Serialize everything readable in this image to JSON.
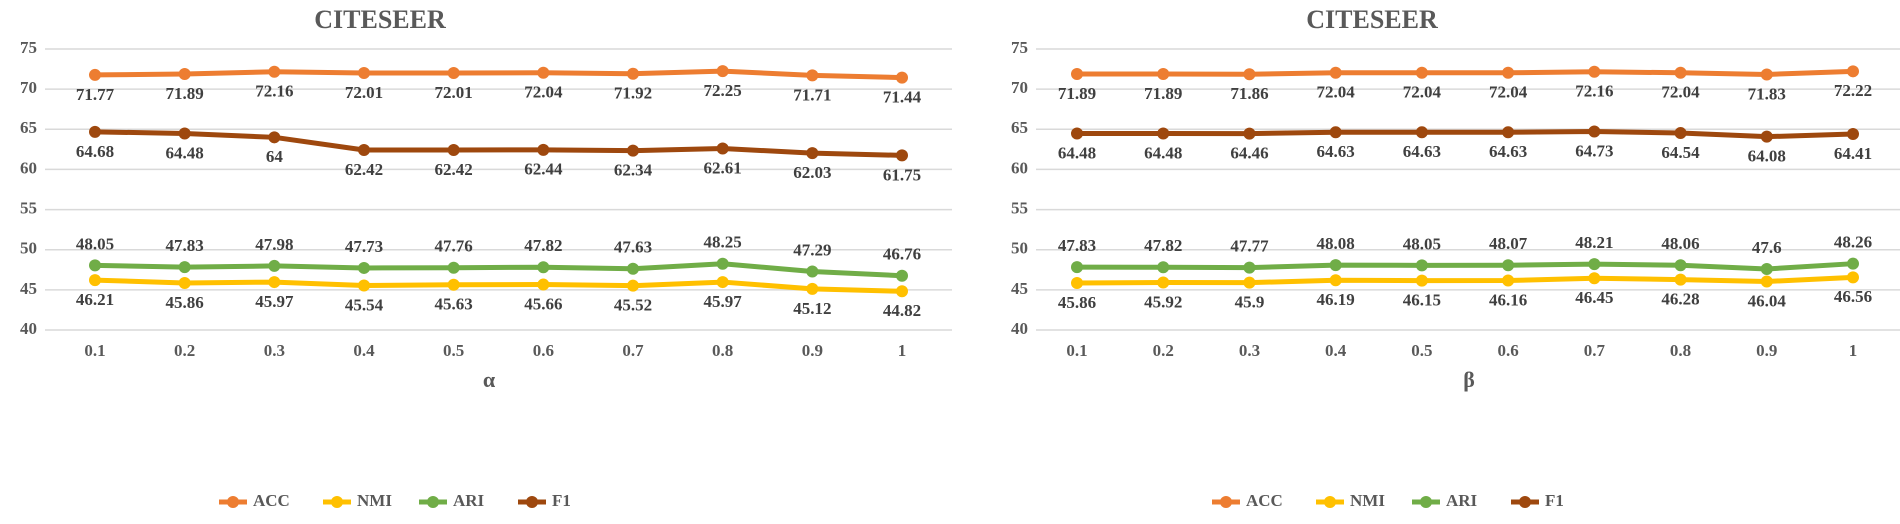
{
  "chart_data": [
    {
      "type": "line",
      "title": "CITESEER",
      "xlabel": "α",
      "ylabel": "",
      "categories": [
        "0.1",
        "0.2",
        "0.3",
        "0.4",
        "0.5",
        "0.6",
        "0.7",
        "0.8",
        "0.9",
        "1"
      ],
      "ylim": [
        40,
        75
      ],
      "yticks": [
        "40",
        "45",
        "50",
        "55",
        "60",
        "65",
        "70",
        "75"
      ],
      "grid": true,
      "legend": "bottom",
      "series": [
        {
          "name": "ACC",
          "color": "#ED7D31",
          "label_pos": "below",
          "values": [
            71.77,
            71.89,
            72.16,
            72.01,
            72.01,
            72.04,
            71.92,
            72.25,
            71.71,
            71.44
          ],
          "labels": [
            "71.77",
            "71.89",
            "72.16",
            "72.01",
            "72.01",
            "72.04",
            "71.92",
            "72.25",
            "71.71",
            "71.44"
          ]
        },
        {
          "name": "NMI",
          "color": "#FFC000",
          "label_pos": "below",
          "values": [
            46.21,
            45.86,
            45.97,
            45.54,
            45.63,
            45.66,
            45.52,
            45.97,
            45.12,
            44.82
          ],
          "labels": [
            "46.21",
            "45.86",
            "45.97",
            "45.54",
            "45.63",
            "45.66",
            "45.52",
            "45.97",
            "45.12",
            "44.82"
          ]
        },
        {
          "name": "ARI",
          "color": "#70AD47",
          "label_pos": "above",
          "values": [
            48.05,
            47.83,
            47.98,
            47.73,
            47.76,
            47.82,
            47.63,
            48.25,
            47.29,
            46.76
          ],
          "labels": [
            "48.05",
            "47.83",
            "47.98",
            "47.73",
            "47.76",
            "47.82",
            "47.63",
            "48.25",
            "47.29",
            "46.76"
          ]
        },
        {
          "name": "F1",
          "color": "#9E480E",
          "label_pos": "below",
          "values": [
            64.68,
            64.48,
            64,
            62.42,
            62.42,
            62.44,
            62.34,
            62.61,
            62.03,
            61.75
          ],
          "labels": [
            "64.68",
            "64.48",
            "64",
            "62.42",
            "62.42",
            "62.44",
            "62.34",
            "62.61",
            "62.03",
            "61.75"
          ]
        }
      ]
    },
    {
      "type": "line",
      "title": "CITESEER",
      "xlabel": "β",
      "ylabel": "",
      "categories": [
        "0.1",
        "0.2",
        "0.3",
        "0.4",
        "0.5",
        "0.6",
        "0.7",
        "0.8",
        "0.9",
        "1"
      ],
      "ylim": [
        40,
        75
      ],
      "yticks": [
        "40",
        "45",
        "50",
        "55",
        "60",
        "65",
        "70",
        "75"
      ],
      "grid": true,
      "legend": "bottom",
      "series": [
        {
          "name": "ACC",
          "color": "#ED7D31",
          "label_pos": "below",
          "values": [
            71.89,
            71.89,
            71.86,
            72.04,
            72.04,
            72.04,
            72.16,
            72.04,
            71.83,
            72.22
          ],
          "labels": [
            "71.89",
            "71.89",
            "71.86",
            "72.04",
            "72.04",
            "72.04",
            "72.16",
            "72.04",
            "71.83",
            "72.22"
          ]
        },
        {
          "name": "NMI",
          "color": "#FFC000",
          "label_pos": "below",
          "values": [
            45.86,
            45.92,
            45.9,
            46.19,
            46.15,
            46.16,
            46.45,
            46.28,
            46.04,
            46.56
          ],
          "labels": [
            "45.86",
            "45.92",
            "45.9",
            "46.19",
            "46.15",
            "46.16",
            "46.45",
            "46.28",
            "46.04",
            "46.56"
          ]
        },
        {
          "name": "ARI",
          "color": "#70AD47",
          "label_pos": "above",
          "values": [
            47.83,
            47.82,
            47.77,
            48.08,
            48.05,
            48.07,
            48.21,
            48.06,
            47.6,
            48.26
          ],
          "labels": [
            "47.83",
            "47.82",
            "47.77",
            "48.08",
            "48.05",
            "48.07",
            "48.21",
            "48.06",
            "47.6",
            "48.26"
          ]
        },
        {
          "name": "F1",
          "color": "#9E480E",
          "label_pos": "below",
          "values": [
            64.48,
            64.48,
            64.46,
            64.63,
            64.63,
            64.63,
            64.73,
            64.54,
            64.08,
            64.41
          ],
          "labels": [
            "64.48",
            "64.48",
            "64.46",
            "64.63",
            "64.63",
            "64.63",
            "64.73",
            "64.54",
            "64.08",
            "64.41"
          ]
        }
      ]
    }
  ]
}
